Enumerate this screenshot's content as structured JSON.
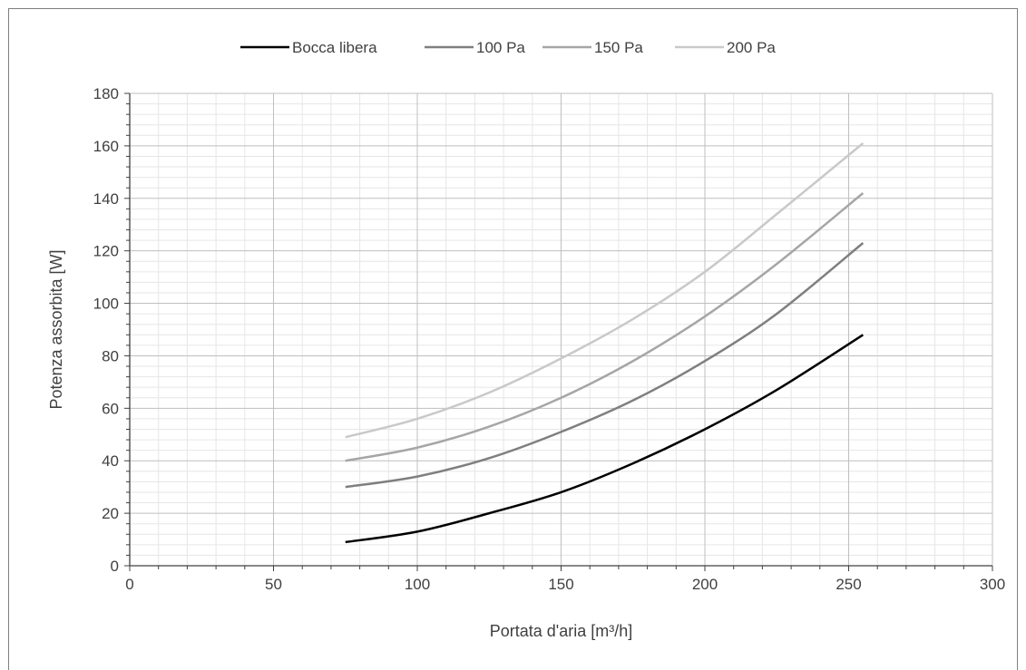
{
  "chart_data": {
    "type": "line",
    "title": "",
    "xlabel": "Portata d'aria [m³/h]",
    "ylabel": "Potenza assorbita [W]",
    "xlim": [
      0,
      300
    ],
    "ylim": [
      0,
      180
    ],
    "x_ticks": [
      "0",
      "50",
      "100",
      "150",
      "200",
      "250",
      "300"
    ],
    "y_ticks": [
      "0",
      "20",
      "40",
      "60",
      "80",
      "100",
      "120",
      "140",
      "160",
      "180"
    ],
    "grid": true,
    "legend_position": "top",
    "series": [
      {
        "name": "Bocca libera",
        "color": "#000000",
        "x": [
          75,
          100,
          125,
          150,
          175,
          200,
          225,
          255
        ],
        "y": [
          9,
          13,
          20,
          28,
          39,
          52,
          67,
          88
        ]
      },
      {
        "name": "100 Pa",
        "color": "#7f7f7f",
        "x": [
          75,
          100,
          125,
          150,
          175,
          200,
          225,
          255
        ],
        "y": [
          30,
          34,
          41,
          51,
          63,
          78,
          96,
          123
        ]
      },
      {
        "name": "150 Pa",
        "color": "#a6a6a6",
        "x": [
          75,
          100,
          125,
          150,
          175,
          200,
          225,
          255
        ],
        "y": [
          40,
          45,
          53,
          64,
          78,
          95,
          115,
          142
        ]
      },
      {
        "name": "200 Pa",
        "color": "#c9c9c9",
        "x": [
          75,
          100,
          125,
          150,
          175,
          200,
          225,
          255
        ],
        "y": [
          49,
          56,
          66,
          79,
          94,
          112,
          134,
          161
        ]
      }
    ]
  }
}
